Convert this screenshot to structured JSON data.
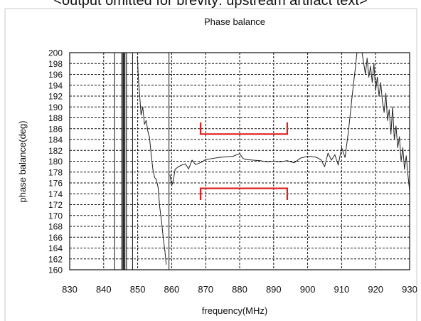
{
  "page": {
    "cropped_header": "<output omitted for brevity: upstream artifact text>"
  },
  "chart_data": {
    "type": "line",
    "title": "Phase balance",
    "xlabel": "frequency(MHz)",
    "ylabel": "phase balance(deg)",
    "xlim": [
      830,
      930
    ],
    "ylim": [
      160,
      200
    ],
    "x_ticks": [
      830,
      840,
      850,
      860,
      870,
      880,
      890,
      900,
      910,
      920,
      930
    ],
    "y_ticks": [
      160,
      162,
      164,
      166,
      168,
      170,
      172,
      174,
      176,
      178,
      180,
      182,
      184,
      186,
      188,
      190,
      192,
      194,
      196,
      198,
      200
    ],
    "grid": true,
    "legend": "none",
    "series": [
      {
        "color": "#222222",
        "vertical_traces": [
          843.2,
          845.4,
          845.8,
          846.2,
          846.7,
          848.5,
          859.2
        ],
        "x": [
          849.9,
          850.2,
          850.6,
          851.0,
          851.5,
          852.0,
          852.5,
          853.0,
          853.5,
          854.0,
          854.5,
          855.0,
          855.5,
          856.0,
          856.5,
          857.0,
          857.5,
          858.0,
          858.4
        ],
        "y": [
          199.2,
          195.5,
          192.0,
          188.5,
          190.0,
          186.8,
          187.5,
          185.5,
          184.3,
          181.0,
          178.4,
          177.0,
          176.6,
          175.2,
          171.5,
          169.0,
          166.0,
          163.5,
          161.0
        ]
      },
      {
        "color": "#222222",
        "x": [
          859.5,
          860.0,
          860.5,
          861.0,
          862.0,
          863.0,
          864.0,
          865.0,
          866.0,
          867.0,
          868.0,
          869.0,
          870.0,
          872.0,
          874.0,
          876.0,
          878.0,
          880.0,
          881.0,
          882.0,
          884.0,
          886.0,
          888.0,
          890.0,
          892.0,
          894.0,
          896.0,
          898.0,
          900.0,
          902.0,
          903.0,
          904.0,
          905.0,
          906.0,
          907.0,
          908.0,
          909.0,
          910.0,
          911.0,
          912.0,
          913.0,
          914.0,
          914.5
        ],
        "y": [
          177.5,
          175.5,
          176.5,
          178.5,
          179.0,
          179.3,
          179.5,
          178.6,
          180.2,
          179.4,
          179.6,
          179.9,
          180.3,
          180.5,
          180.7,
          180.8,
          180.9,
          181.4,
          180.5,
          180.3,
          180.2,
          180.1,
          179.9,
          180.0,
          179.9,
          180.1,
          179.7,
          180.6,
          180.9,
          180.8,
          180.6,
          180.2,
          179.0,
          181.5,
          180.2,
          181.2,
          179.3,
          182.5,
          180.7,
          185.5,
          191.5,
          197.0,
          200.0
        ]
      },
      {
        "color": "#222222",
        "x": [
          916.0,
          916.5,
          917.0,
          917.5,
          918.0,
          918.5,
          919.0,
          919.5,
          920.0,
          920.5,
          921.0,
          921.5,
          922.0,
          922.5,
          923.0,
          923.5,
          924.0,
          924.5,
          925.0,
          925.5,
          926.0,
          926.5,
          927.0,
          927.5,
          928.0,
          928.5,
          929.0,
          929.5,
          930.0
        ],
        "y": [
          200.0,
          198.0,
          196.0,
          199.0,
          195.5,
          197.5,
          194.5,
          198.0,
          193.0,
          195.5,
          192.0,
          194.5,
          191.0,
          189.0,
          192.5,
          187.5,
          189.5,
          185.0,
          190.0,
          184.0,
          186.5,
          182.5,
          184.5,
          180.0,
          182.5,
          178.5,
          181.0,
          177.5,
          174.5
        ]
      }
    ],
    "annotations": [
      {
        "type": "red_bracket",
        "x": [
          868.5,
          894.0
        ],
        "upper_y": 185.0,
        "upper_arm": 187.0,
        "lower_y": 175.0,
        "lower_arm": 173.0,
        "color": "#e02020"
      }
    ]
  }
}
